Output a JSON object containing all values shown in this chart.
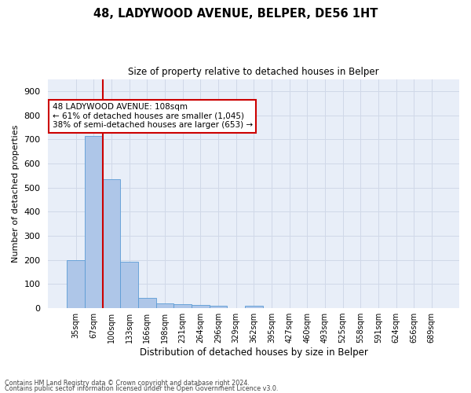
{
  "title": "48, LADYWOOD AVENUE, BELPER, DE56 1HT",
  "subtitle": "Size of property relative to detached houses in Belper",
  "xlabel": "Distribution of detached houses by size in Belper",
  "ylabel": "Number of detached properties",
  "categories": [
    "35sqm",
    "67sqm",
    "100sqm",
    "133sqm",
    "166sqm",
    "198sqm",
    "231sqm",
    "264sqm",
    "296sqm",
    "329sqm",
    "362sqm",
    "395sqm",
    "427sqm",
    "460sqm",
    "493sqm",
    "525sqm",
    "558sqm",
    "591sqm",
    "624sqm",
    "656sqm",
    "689sqm"
  ],
  "values": [
    200,
    715,
    535,
    193,
    42,
    20,
    15,
    13,
    10,
    0,
    10,
    0,
    0,
    0,
    0,
    0,
    0,
    0,
    0,
    0,
    0
  ],
  "bar_color": "#aec6e8",
  "bar_edge_color": "#5b9bd5",
  "redline_index": 2,
  "annotation_line1": "48 LADYWOOD AVENUE: 108sqm",
  "annotation_line2": "← 61% of detached houses are smaller (1,045)",
  "annotation_line3": "38% of semi-detached houses are larger (653) →",
  "annotation_box_color": "#ffffff",
  "annotation_box_edge": "#cc0000",
  "redline_color": "#cc0000",
  "grid_color": "#d0d8e8",
  "background_color": "#e8eef8",
  "ylim": [
    0,
    950
  ],
  "yticks": [
    0,
    100,
    200,
    300,
    400,
    500,
    600,
    700,
    800,
    900
  ],
  "footer_line1": "Contains HM Land Registry data © Crown copyright and database right 2024.",
  "footer_line2": "Contains public sector information licensed under the Open Government Licence v3.0."
}
